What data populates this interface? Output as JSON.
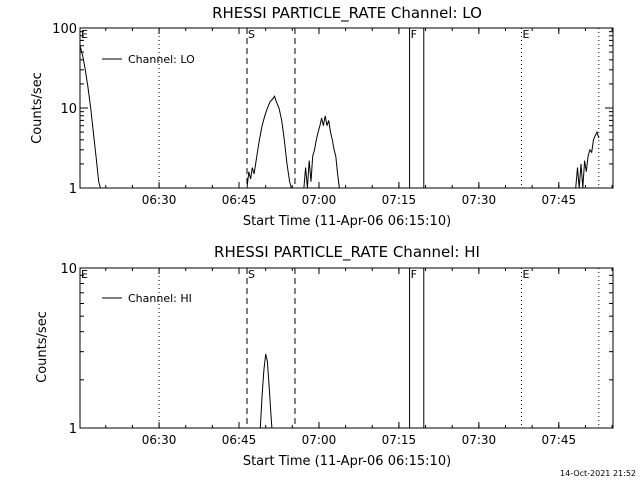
{
  "footer_timestamp": "14-Oct-2021 21:52",
  "chart_data": [
    {
      "type": "line",
      "title": "RHESSI PARTICLE_RATE Channel: LO",
      "xlabel": "Start Time (11-Apr-06 06:15:10)",
      "ylabel": "Counts/sec",
      "yscale": "log",
      "ylim": [
        1,
        100
      ],
      "ytick_labels": [
        "1",
        "10",
        "100"
      ],
      "xlim": [
        "06:15:10",
        "07:55:10"
      ],
      "xtick_labels": [
        "06:30",
        "06:45",
        "07:00",
        "07:15",
        "07:30",
        "07:45"
      ],
      "legend": {
        "position": "top-left",
        "entries": [
          "Channel: LO"
        ]
      },
      "markers": [
        {
          "label": "E",
          "time": "06:15:10",
          "style": "dotted"
        },
        {
          "label": "",
          "time": "06:30:00",
          "style": "dotted"
        },
        {
          "label": "S",
          "time": "06:46:30",
          "style": "dashed"
        },
        {
          "label": "",
          "time": "06:55:30",
          "style": "dashed"
        },
        {
          "label": "F",
          "time": "07:17:00",
          "style": "solid"
        },
        {
          "label": "",
          "time": "07:19:40",
          "style": "solid"
        },
        {
          "label": "E",
          "time": "07:38:00",
          "style": "dotted"
        },
        {
          "label": "",
          "time": "07:52:30",
          "style": "dotted"
        }
      ],
      "series": [
        {
          "name": "Channel: LO",
          "segments": [
            [
              [
                "06:15:10",
                60
              ],
              [
                "06:15:40",
                45
              ],
              [
                "06:16:10",
                30
              ],
              [
                "06:16:40",
                18
              ],
              [
                "06:17:10",
                10
              ],
              [
                "06:17:40",
                5
              ],
              [
                "06:18:10",
                2.5
              ],
              [
                "06:18:40",
                1.2
              ],
              [
                "06:19:00",
                1
              ]
            ],
            [
              [
                "06:46:30",
                1
              ],
              [
                "06:46:50",
                1.6
              ],
              [
                "06:47:10",
                1.3
              ],
              [
                "06:47:30",
                1.8
              ],
              [
                "06:47:50",
                1.5
              ],
              [
                "06:48:20",
                2.5
              ],
              [
                "06:48:50",
                4
              ],
              [
                "06:49:20",
                6
              ],
              [
                "06:49:50",
                8
              ],
              [
                "06:50:20",
                10
              ],
              [
                "06:50:50",
                12
              ],
              [
                "06:51:20",
                13
              ],
              [
                "06:51:40",
                14
              ],
              [
                "06:52:00",
                12
              ],
              [
                "06:52:30",
                10
              ],
              [
                "06:53:00",
                7
              ],
              [
                "06:53:30",
                4
              ],
              [
                "06:54:00",
                2
              ],
              [
                "06:54:30",
                1.2
              ],
              [
                "06:54:50",
                1
              ]
            ],
            [
              [
                "06:57:10",
                1
              ],
              [
                "06:57:30",
                1.8
              ],
              [
                "06:57:50",
                1
              ],
              [
                "06:58:10",
                2.2
              ],
              [
                "06:58:30",
                1.2
              ],
              [
                "06:58:50",
                2.5
              ],
              [
                "06:59:10",
                3
              ],
              [
                "06:59:30",
                4
              ],
              [
                "06:59:50",
                5
              ],
              [
                "07:00:10",
                6
              ],
              [
                "07:00:30",
                7.5
              ],
              [
                "07:00:50",
                6
              ],
              [
                "07:01:10",
                8
              ],
              [
                "07:01:30",
                6
              ],
              [
                "07:01:50",
                7
              ],
              [
                "07:02:10",
                5
              ],
              [
                "07:02:30",
                4
              ],
              [
                "07:02:50",
                3
              ],
              [
                "07:03:10",
                2.5
              ],
              [
                "07:03:30",
                1.5
              ],
              [
                "07:03:50",
                1
              ]
            ],
            [
              [
                "07:48:10",
                1
              ],
              [
                "07:48:30",
                1.8
              ],
              [
                "07:48:50",
                1
              ],
              [
                "07:49:10",
                2
              ],
              [
                "07:49:30",
                1
              ],
              [
                "07:49:50",
                2.2
              ],
              [
                "07:50:10",
                1.6
              ],
              [
                "07:50:30",
                2.5
              ],
              [
                "07:50:50",
                3
              ],
              [
                "07:51:10",
                2.8
              ],
              [
                "07:51:30",
                4
              ],
              [
                "07:51:50",
                4.5
              ],
              [
                "07:52:10",
                5
              ],
              [
                "07:52:30",
                4.2
              ]
            ]
          ]
        }
      ]
    },
    {
      "type": "line",
      "title": "RHESSI PARTICLE_RATE Channel: HI",
      "xlabel": "Start Time (11-Apr-06 06:15:10)",
      "ylabel": "Counts/sec",
      "yscale": "log",
      "ylim": [
        1,
        10
      ],
      "ytick_labels": [
        "1",
        "10"
      ],
      "xlim": [
        "06:15:10",
        "07:55:10"
      ],
      "xtick_labels": [
        "06:30",
        "06:45",
        "07:00",
        "07:15",
        "07:30",
        "07:45"
      ],
      "legend": {
        "position": "top-left",
        "entries": [
          "Channel: HI"
        ]
      },
      "markers": [
        {
          "label": "E",
          "time": "06:15:10",
          "style": "dotted"
        },
        {
          "label": "",
          "time": "06:30:00",
          "style": "dotted"
        },
        {
          "label": "S",
          "time": "06:46:30",
          "style": "dashed"
        },
        {
          "label": "",
          "time": "06:55:30",
          "style": "dashed"
        },
        {
          "label": "F",
          "time": "07:17:00",
          "style": "solid"
        },
        {
          "label": "",
          "time": "07:19:40",
          "style": "solid"
        },
        {
          "label": "E",
          "time": "07:38:00",
          "style": "dotted"
        },
        {
          "label": "",
          "time": "07:52:30",
          "style": "dotted"
        }
      ],
      "series": [
        {
          "name": "Channel: HI",
          "segments": [
            [
              [
                "06:49:00",
                1
              ],
              [
                "06:49:20",
                1.6
              ],
              [
                "06:49:40",
                2.3
              ],
              [
                "06:50:00",
                2.9
              ],
              [
                "06:50:20",
                2.6
              ],
              [
                "06:50:40",
                1.8
              ],
              [
                "06:51:00",
                1.2
              ],
              [
                "06:51:10",
                1
              ]
            ]
          ]
        }
      ]
    }
  ]
}
